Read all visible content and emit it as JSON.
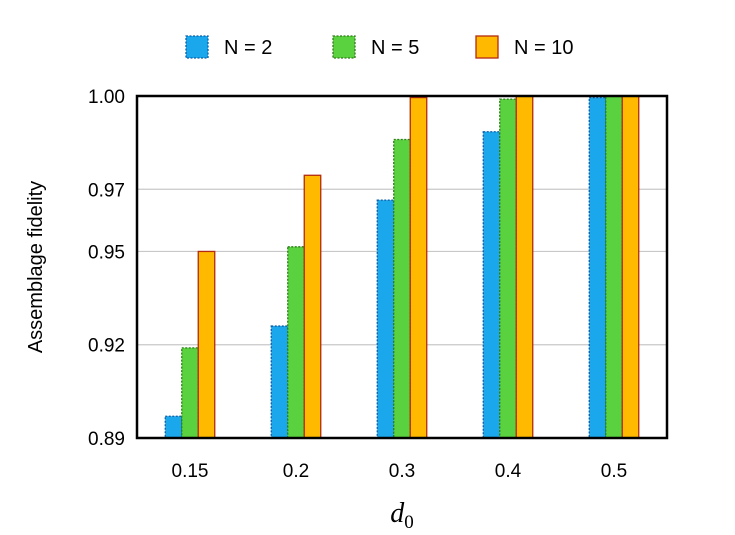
{
  "chart_data": {
    "type": "bar",
    "title": "",
    "xlabel": "d",
    "xlabel_subscript": "0",
    "ylabel": "Assemblage fidelity",
    "categories": [
      "0.15",
      "0.2",
      "0.3",
      "0.4",
      "0.5"
    ],
    "series": [
      {
        "name": "N = 2",
        "fill": "#1aa7ec",
        "stroke": "#0b5fa8",
        "dashed": true,
        "values": [
          0.897,
          0.926,
          0.9665,
          0.9885,
          0.9995
        ]
      },
      {
        "name": "N = 5",
        "fill": "#5ad13e",
        "stroke": "#2e7d1a",
        "dashed": true,
        "values": [
          0.919,
          0.9515,
          0.986,
          0.999,
          1.0
        ]
      },
      {
        "name": "N = 10",
        "fill": "#ffba00",
        "stroke": "#b32a10",
        "dashed": false,
        "values": [
          0.95,
          0.9745,
          0.9995,
          1.0,
          1.0
        ]
      }
    ],
    "yticks": [
      0.89,
      0.92,
      0.95,
      0.97,
      1.0
    ],
    "ytick_labels": [
      "0.89",
      "0.92",
      "0.95",
      "0.97",
      "1.00"
    ],
    "ylim": [
      0.89,
      1.0
    ],
    "grid": "horizontal",
    "legend_position": "top"
  }
}
